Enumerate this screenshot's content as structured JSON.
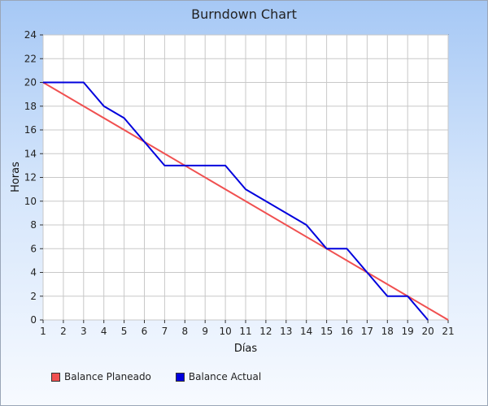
{
  "chart_data": {
    "type": "line",
    "title": "Burndown Chart",
    "xlabel": "Días",
    "ylabel": "Horas",
    "xlim": [
      1,
      21
    ],
    "ylim": [
      0,
      24
    ],
    "x_ticks": [
      1,
      2,
      3,
      4,
      5,
      6,
      7,
      8,
      9,
      10,
      11,
      12,
      13,
      14,
      15,
      16,
      17,
      18,
      19,
      20,
      21
    ],
    "y_ticks": [
      0,
      2,
      4,
      6,
      8,
      10,
      12,
      14,
      16,
      18,
      20,
      22,
      24
    ],
    "grid": true,
    "legend_position": "bottom-left",
    "series": [
      {
        "name": "Balance Planeado",
        "color": "#f05050",
        "x": [
          1,
          21
        ],
        "y": [
          20,
          0
        ]
      },
      {
        "name": "Balance Actual",
        "color": "#0000dd",
        "x": [
          1,
          2,
          3,
          4,
          5,
          6,
          7,
          8,
          9,
          10,
          11,
          12,
          13,
          14,
          15,
          16,
          17,
          18,
          19,
          20
        ],
        "y": [
          20,
          20,
          20,
          18,
          17,
          15,
          13,
          13,
          13,
          13,
          11,
          10,
          9,
          8,
          6,
          6,
          4,
          2,
          2,
          0
        ]
      }
    ]
  }
}
